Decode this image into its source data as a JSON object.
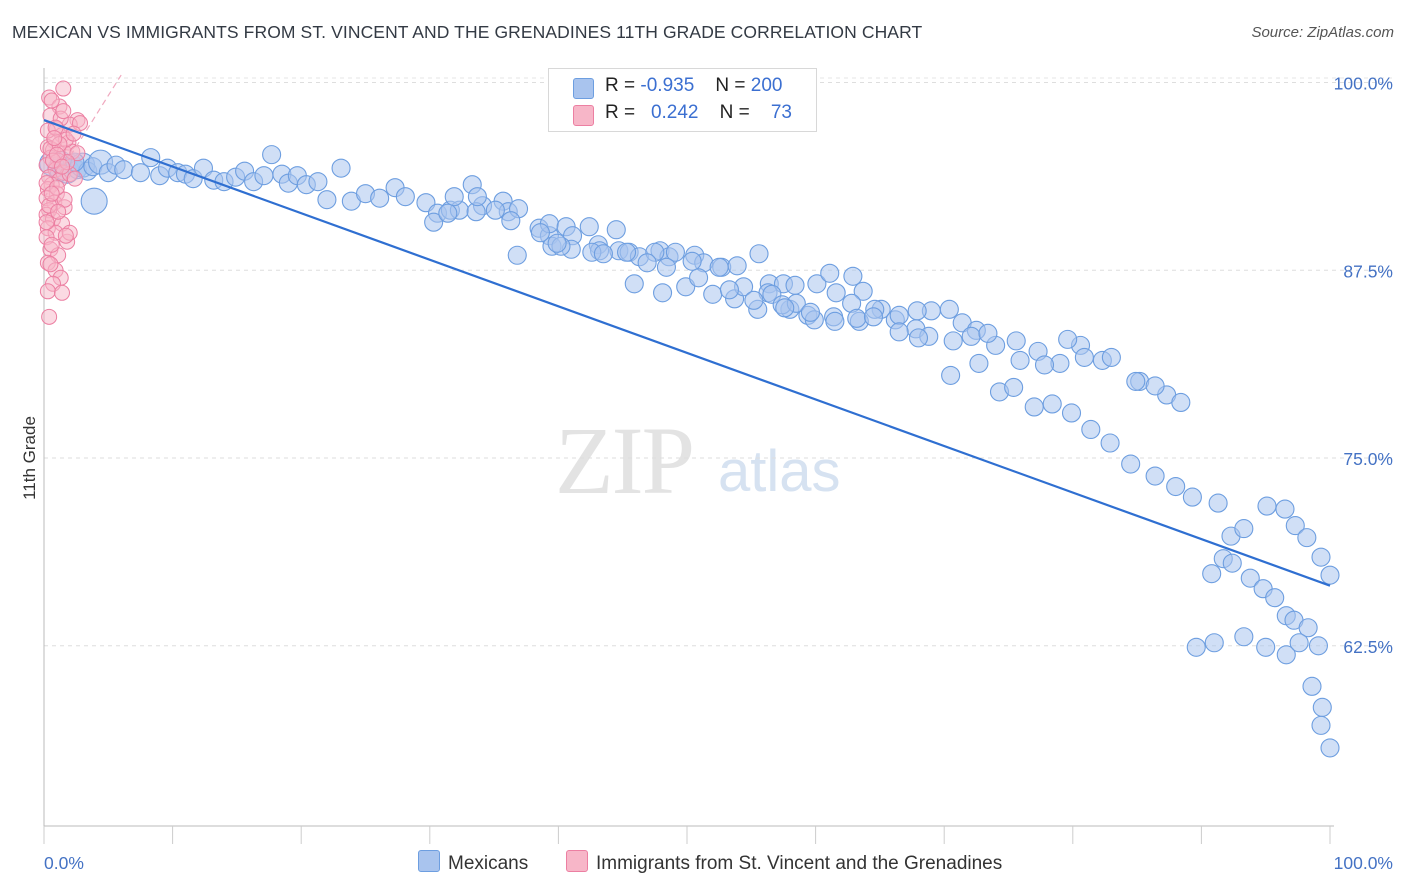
{
  "title": "MEXICAN VS IMMIGRANTS FROM ST. VINCENT AND THE GRENADINES 11TH GRADE CORRELATION CHART",
  "source": "Source: ZipAtlas.com",
  "watermark": {
    "main": "ZIP",
    "sub": "atlas"
  },
  "legend": {
    "rows": [
      {
        "r_label": "R =",
        "r_value": "-0.935",
        "n_label": "N =",
        "n_value": "200",
        "color": "#a9c4ee"
      },
      {
        "r_label": "R =",
        "r_value": "0.242",
        "n_label": "N =",
        "n_value": "73",
        "color": "#f7b6c8"
      }
    ]
  },
  "bottom_legend": [
    {
      "label": "Mexicans",
      "color": "#a9c4ee"
    },
    {
      "label": "Immigrants from St. Vincent and the Grenadines",
      "color": "#f7b6c8"
    }
  ],
  "chart_data": {
    "type": "scatter",
    "title": "MEXICAN VS IMMIGRANTS FROM ST. VINCENT AND THE GRENADINES 11TH GRADE CORRELATION CHART",
    "xlabel": "",
    "ylabel": "11th Grade",
    "xlim": [
      0,
      100
    ],
    "ylim": [
      50.5,
      101.5
    ],
    "x_tick_labels": [
      "0.0%",
      "100.0%"
    ],
    "y_ticks": [
      62.5,
      75.0,
      87.5,
      100.0
    ],
    "y_tick_labels": [
      "62.5%",
      "75.0%",
      "87.5%",
      "100.0%"
    ],
    "grid": true,
    "colors": {
      "blue": "#6d9ee0",
      "blue_fill": "#a9c4ee",
      "blue_line": "#2f6fd1",
      "pink": "#ec7fa2",
      "pink_fill": "#f7b6c8"
    },
    "series": [
      {
        "name": "Mexicans",
        "r": -0.935,
        "n": 200,
        "trend": {
          "x": [
            0,
            100
          ],
          "y": [
            97.5,
            66.5
          ]
        },
        "points": [
          [
            0.6,
            94.6
          ],
          [
            1.0,
            94.3
          ],
          [
            1.4,
            94.8
          ],
          [
            1.8,
            94.1
          ],
          [
            2.2,
            94.6
          ],
          [
            2.6,
            94.2
          ],
          [
            3.0,
            94.5
          ],
          [
            3.4,
            94.1
          ],
          [
            3.8,
            94.4
          ],
          [
            4.4,
            94.7
          ],
          [
            5.0,
            94.0
          ],
          [
            5.6,
            94.5
          ],
          [
            6.2,
            94.2
          ],
          [
            3.9,
            92.1
          ],
          [
            2.4,
            94.7
          ],
          [
            1.2,
            94.0
          ],
          [
            7.5,
            94.0
          ],
          [
            8.3,
            95.0
          ],
          [
            9.0,
            93.8
          ],
          [
            9.6,
            94.3
          ],
          [
            10.4,
            94.0
          ],
          [
            11.0,
            93.9
          ],
          [
            11.6,
            93.6
          ],
          [
            12.4,
            94.3
          ],
          [
            13.2,
            93.5
          ],
          [
            14.0,
            93.4
          ],
          [
            14.9,
            93.7
          ],
          [
            15.6,
            94.1
          ],
          [
            16.3,
            93.4
          ],
          [
            17.1,
            93.8
          ],
          [
            17.7,
            95.2
          ],
          [
            18.5,
            93.9
          ],
          [
            19.0,
            93.3
          ],
          [
            19.7,
            93.8
          ],
          [
            20.4,
            93.2
          ],
          [
            21.3,
            93.4
          ],
          [
            23.1,
            94.3
          ],
          [
            22.0,
            92.2
          ],
          [
            23.9,
            92.1
          ],
          [
            25.0,
            92.6
          ],
          [
            26.1,
            92.3
          ],
          [
            27.3,
            93.0
          ],
          [
            28.1,
            92.4
          ],
          [
            29.7,
            92.0
          ],
          [
            30.6,
            91.3
          ],
          [
            31.6,
            91.5
          ],
          [
            32.3,
            91.5
          ],
          [
            31.9,
            92.4
          ],
          [
            33.3,
            93.2
          ],
          [
            34.1,
            91.8
          ],
          [
            35.7,
            92.1
          ],
          [
            36.1,
            91.4
          ],
          [
            36.9,
            91.6
          ],
          [
            36.3,
            90.8
          ],
          [
            38.5,
            90.3
          ],
          [
            39.3,
            89.8
          ],
          [
            39.3,
            90.6
          ],
          [
            40.6,
            90.4
          ],
          [
            41.1,
            89.8
          ],
          [
            42.4,
            90.4
          ],
          [
            43.1,
            89.2
          ],
          [
            44.5,
            90.2
          ],
          [
            44.7,
            88.8
          ],
          [
            45.5,
            88.7
          ],
          [
            46.3,
            88.4
          ],
          [
            47.9,
            88.8
          ],
          [
            48.6,
            88.4
          ],
          [
            49.1,
            88.7
          ],
          [
            50.6,
            88.5
          ],
          [
            51.3,
            88.0
          ],
          [
            52.7,
            87.7
          ],
          [
            53.9,
            87.8
          ],
          [
            55.6,
            88.6
          ],
          [
            56.4,
            86.6
          ],
          [
            57.5,
            86.6
          ],
          [
            58.4,
            86.5
          ],
          [
            60.1,
            86.6
          ],
          [
            61.1,
            87.3
          ],
          [
            62.9,
            87.1
          ],
          [
            63.7,
            86.1
          ],
          [
            36.8,
            88.5
          ],
          [
            39.5,
            89.1
          ],
          [
            41.0,
            88.9
          ],
          [
            43.2,
            88.8
          ],
          [
            45.9,
            86.6
          ],
          [
            48.1,
            86.0
          ],
          [
            49.9,
            86.4
          ],
          [
            52.0,
            85.9
          ],
          [
            53.7,
            85.6
          ],
          [
            55.5,
            84.9
          ],
          [
            58.0,
            84.9
          ],
          [
            59.4,
            84.5
          ],
          [
            61.4,
            84.4
          ],
          [
            63.4,
            84.1
          ],
          [
            65.1,
            84.9
          ],
          [
            66.2,
            84.2
          ],
          [
            67.8,
            83.6
          ],
          [
            69.0,
            84.8
          ],
          [
            70.4,
            84.9
          ],
          [
            71.4,
            84.0
          ],
          [
            72.5,
            83.5
          ],
          [
            74.0,
            82.5
          ],
          [
            75.9,
            81.5
          ],
          [
            77.3,
            82.1
          ],
          [
            79.0,
            81.3
          ],
          [
            80.6,
            82.5
          ],
          [
            82.3,
            81.5
          ],
          [
            85.2,
            80.1
          ],
          [
            87.3,
            79.2
          ],
          [
            88.4,
            78.7
          ],
          [
            30.3,
            90.7
          ],
          [
            31.4,
            91.3
          ],
          [
            33.6,
            91.4
          ],
          [
            35.1,
            91.5
          ],
          [
            40.2,
            89.1
          ],
          [
            42.6,
            88.7
          ],
          [
            45.3,
            88.7
          ],
          [
            47.5,
            88.7
          ],
          [
            50.4,
            88.1
          ],
          [
            52.5,
            87.7
          ],
          [
            54.4,
            86.4
          ],
          [
            56.3,
            86.0
          ],
          [
            56.6,
            85.9
          ],
          [
            57.4,
            85.2
          ],
          [
            58.5,
            85.3
          ],
          [
            59.9,
            84.2
          ],
          [
            61.6,
            86.0
          ],
          [
            62.8,
            85.3
          ],
          [
            64.6,
            84.9
          ],
          [
            66.5,
            84.5
          ],
          [
            67.9,
            84.8
          ],
          [
            68.8,
            83.1
          ],
          [
            70.7,
            82.8
          ],
          [
            72.1,
            83.1
          ],
          [
            73.4,
            83.3
          ],
          [
            75.6,
            82.8
          ],
          [
            77.8,
            81.2
          ],
          [
            79.6,
            82.9
          ],
          [
            80.9,
            81.7
          ],
          [
            83.0,
            81.7
          ],
          [
            84.9,
            80.1
          ],
          [
            86.4,
            79.8
          ],
          [
            33.7,
            92.4
          ],
          [
            38.6,
            90.0
          ],
          [
            39.9,
            89.3
          ],
          [
            43.5,
            88.6
          ],
          [
            46.9,
            88.0
          ],
          [
            48.4,
            87.7
          ],
          [
            50.9,
            87.0
          ],
          [
            53.3,
            86.2
          ],
          [
            55.2,
            85.5
          ],
          [
            57.6,
            85.0
          ],
          [
            59.6,
            84.7
          ],
          [
            61.5,
            84.1
          ],
          [
            63.2,
            84.3
          ],
          [
            64.5,
            84.4
          ],
          [
            66.5,
            83.4
          ],
          [
            68.0,
            83.0
          ],
          [
            70.5,
            80.5
          ],
          [
            72.7,
            81.3
          ],
          [
            74.3,
            79.4
          ],
          [
            75.4,
            79.7
          ],
          [
            77.0,
            78.4
          ],
          [
            78.4,
            78.6
          ],
          [
            79.9,
            78.0
          ],
          [
            81.4,
            76.9
          ],
          [
            82.9,
            76.0
          ],
          [
            84.5,
            74.6
          ],
          [
            86.4,
            73.8
          ],
          [
            88.0,
            73.1
          ],
          [
            89.3,
            72.4
          ],
          [
            91.3,
            72.0
          ],
          [
            92.3,
            69.8
          ],
          [
            93.3,
            70.3
          ],
          [
            95.1,
            71.8
          ],
          [
            96.5,
            71.6
          ],
          [
            97.3,
            70.5
          ],
          [
            98.2,
            69.7
          ],
          [
            99.3,
            68.4
          ],
          [
            100.0,
            67.2
          ],
          [
            90.8,
            67.3
          ],
          [
            91.7,
            68.3
          ],
          [
            92.4,
            68.0
          ],
          [
            93.8,
            67.0
          ],
          [
            94.8,
            66.3
          ],
          [
            95.7,
            65.7
          ],
          [
            96.6,
            64.5
          ],
          [
            97.2,
            64.2
          ],
          [
            98.3,
            63.7
          ],
          [
            99.1,
            62.5
          ],
          [
            89.6,
            62.4
          ],
          [
            91.0,
            62.7
          ],
          [
            93.3,
            63.1
          ],
          [
            95.0,
            62.4
          ],
          [
            96.6,
            61.9
          ],
          [
            97.6,
            62.7
          ],
          [
            98.6,
            59.8
          ],
          [
            99.4,
            58.4
          ],
          [
            99.3,
            57.2
          ],
          [
            100.0,
            55.7
          ]
        ]
      },
      {
        "name": "Immigrants from St. Vincent and the Grenadines",
        "r": 0.242,
        "n": 73,
        "trend": {
          "x": [
            0,
            6.0
          ],
          "y": [
            92.3,
            100.5
          ]
        },
        "points": [
          [
            0.4,
            99.0
          ],
          [
            1.5,
            99.6
          ],
          [
            1.2,
            98.4
          ],
          [
            0.5,
            97.8
          ],
          [
            2.6,
            97.5
          ],
          [
            2.0,
            97.2
          ],
          [
            1.0,
            96.9
          ],
          [
            1.4,
            96.5
          ],
          [
            0.8,
            96.1
          ],
          [
            1.9,
            96.0
          ],
          [
            0.3,
            95.7
          ],
          [
            0.7,
            95.5
          ],
          [
            1.6,
            95.3
          ],
          [
            2.2,
            95.4
          ],
          [
            0.5,
            95.0
          ],
          [
            1.1,
            94.8
          ],
          [
            0.2,
            94.5
          ],
          [
            0.9,
            94.2
          ],
          [
            1.5,
            94.0
          ],
          [
            0.4,
            93.7
          ],
          [
            1.2,
            93.5
          ],
          [
            0.6,
            93.2
          ],
          [
            0.3,
            92.9
          ],
          [
            1.0,
            92.6
          ],
          [
            0.2,
            92.3
          ],
          [
            0.8,
            92.0
          ],
          [
            1.6,
            91.7
          ],
          [
            0.4,
            91.5
          ],
          [
            0.2,
            91.2
          ],
          [
            0.7,
            90.9
          ],
          [
            1.4,
            90.6
          ],
          [
            0.3,
            90.3
          ],
          [
            0.9,
            90.0
          ],
          [
            0.2,
            89.7
          ],
          [
            1.8,
            89.4
          ],
          [
            0.5,
            88.9
          ],
          [
            1.1,
            88.5
          ],
          [
            0.3,
            88.0
          ],
          [
            0.9,
            87.5
          ],
          [
            1.3,
            87.0
          ],
          [
            0.7,
            86.6
          ],
          [
            0.3,
            86.1
          ],
          [
            1.4,
            86.0
          ],
          [
            0.4,
            84.4
          ],
          [
            2.0,
            93.9
          ],
          [
            2.6,
            95.3
          ],
          [
            1.7,
            96.2
          ],
          [
            0.6,
            98.8
          ],
          [
            1.3,
            97.6
          ],
          [
            2.8,
            97.3
          ],
          [
            0.5,
            95.6
          ],
          [
            1.8,
            94.7
          ],
          [
            0.2,
            93.3
          ],
          [
            1.6,
            92.2
          ],
          [
            0.4,
            91.8
          ],
          [
            2.0,
            90.0
          ],
          [
            0.6,
            89.2
          ],
          [
            1.0,
            93.0
          ],
          [
            0.7,
            94.8
          ],
          [
            1.2,
            95.9
          ],
          [
            0.3,
            96.8
          ],
          [
            0.9,
            97.0
          ],
          [
            1.5,
            98.1
          ],
          [
            2.3,
            96.6
          ],
          [
            0.6,
            92.6
          ],
          [
            1.1,
            91.4
          ],
          [
            0.2,
            90.7
          ],
          [
            1.7,
            89.8
          ],
          [
            0.5,
            87.9
          ],
          [
            1.0,
            95.2
          ],
          [
            2.4,
            93.6
          ],
          [
            0.8,
            96.3
          ],
          [
            1.4,
            94.4
          ]
        ]
      }
    ]
  }
}
